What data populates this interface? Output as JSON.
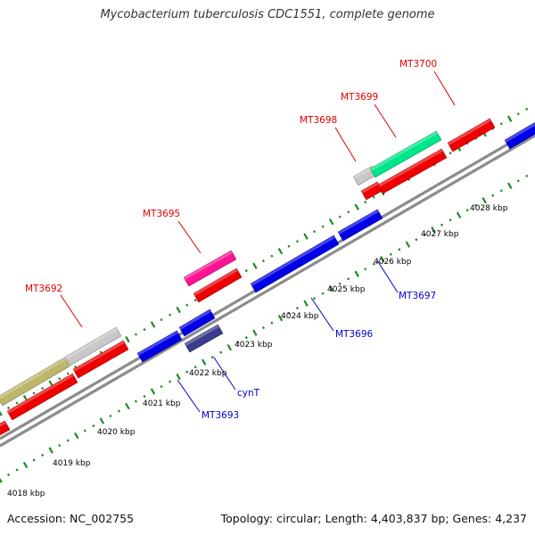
{
  "title": "Mycobacterium tuberculosis CDC1551, complete genome",
  "footer": {
    "accession": "Accession: NC_002755",
    "summary": "Topology: circular; Length: 4,403,837 bp; Genes: 4,237"
  },
  "colors": {
    "backbone": "#8c8c8c",
    "tick": "#1f8a1f",
    "label_forward": "#e00000",
    "label_reverse": "#0000cc",
    "kbp_label": "#000000"
  },
  "scale_labels": [
    "4018 kbp",
    "4019 kbp",
    "4020 kbp",
    "4021 kbp",
    "4022 kbp",
    "4023 kbp",
    "4024 kbp",
    "4025 kbp",
    "4026 kbp",
    "4027 kbp",
    "4028 kbp"
  ],
  "gene_labels": {
    "forward": [
      "MT3692",
      "MT3695",
      "MT3698",
      "MT3699",
      "MT3700"
    ],
    "reverse": [
      "MT3693",
      "cynT",
      "MT3696",
      "MT3697"
    ]
  },
  "features": [
    {
      "strand": "forward",
      "color": "#ee0000"
    },
    {
      "strand": "forward",
      "color": "#ee0000"
    },
    {
      "strand": "forward",
      "color": "#ee0000"
    },
    {
      "strand": "forward",
      "color": "#bdb76b"
    },
    {
      "strand": "forward",
      "color": "#c8c8c8"
    },
    {
      "strand": "forward",
      "color": "#ee0000"
    },
    {
      "strand": "forward",
      "color": "#ff1493"
    },
    {
      "strand": "forward",
      "color": "#ee0000"
    },
    {
      "strand": "forward",
      "color": "#ee0000"
    },
    {
      "strand": "forward",
      "color": "#c8c8c8"
    },
    {
      "strand": "forward",
      "color": "#00e68c"
    },
    {
      "strand": "forward",
      "color": "#ee0000"
    },
    {
      "strand": "reverse",
      "color": "#0000e6"
    },
    {
      "strand": "reverse",
      "color": "#0000e6"
    },
    {
      "strand": "reverse",
      "color": "#3c3c8c"
    },
    {
      "strand": "reverse",
      "color": "#0000e6"
    },
    {
      "strand": "reverse",
      "color": "#0000e6"
    },
    {
      "strand": "reverse",
      "color": "#0000e6"
    }
  ]
}
